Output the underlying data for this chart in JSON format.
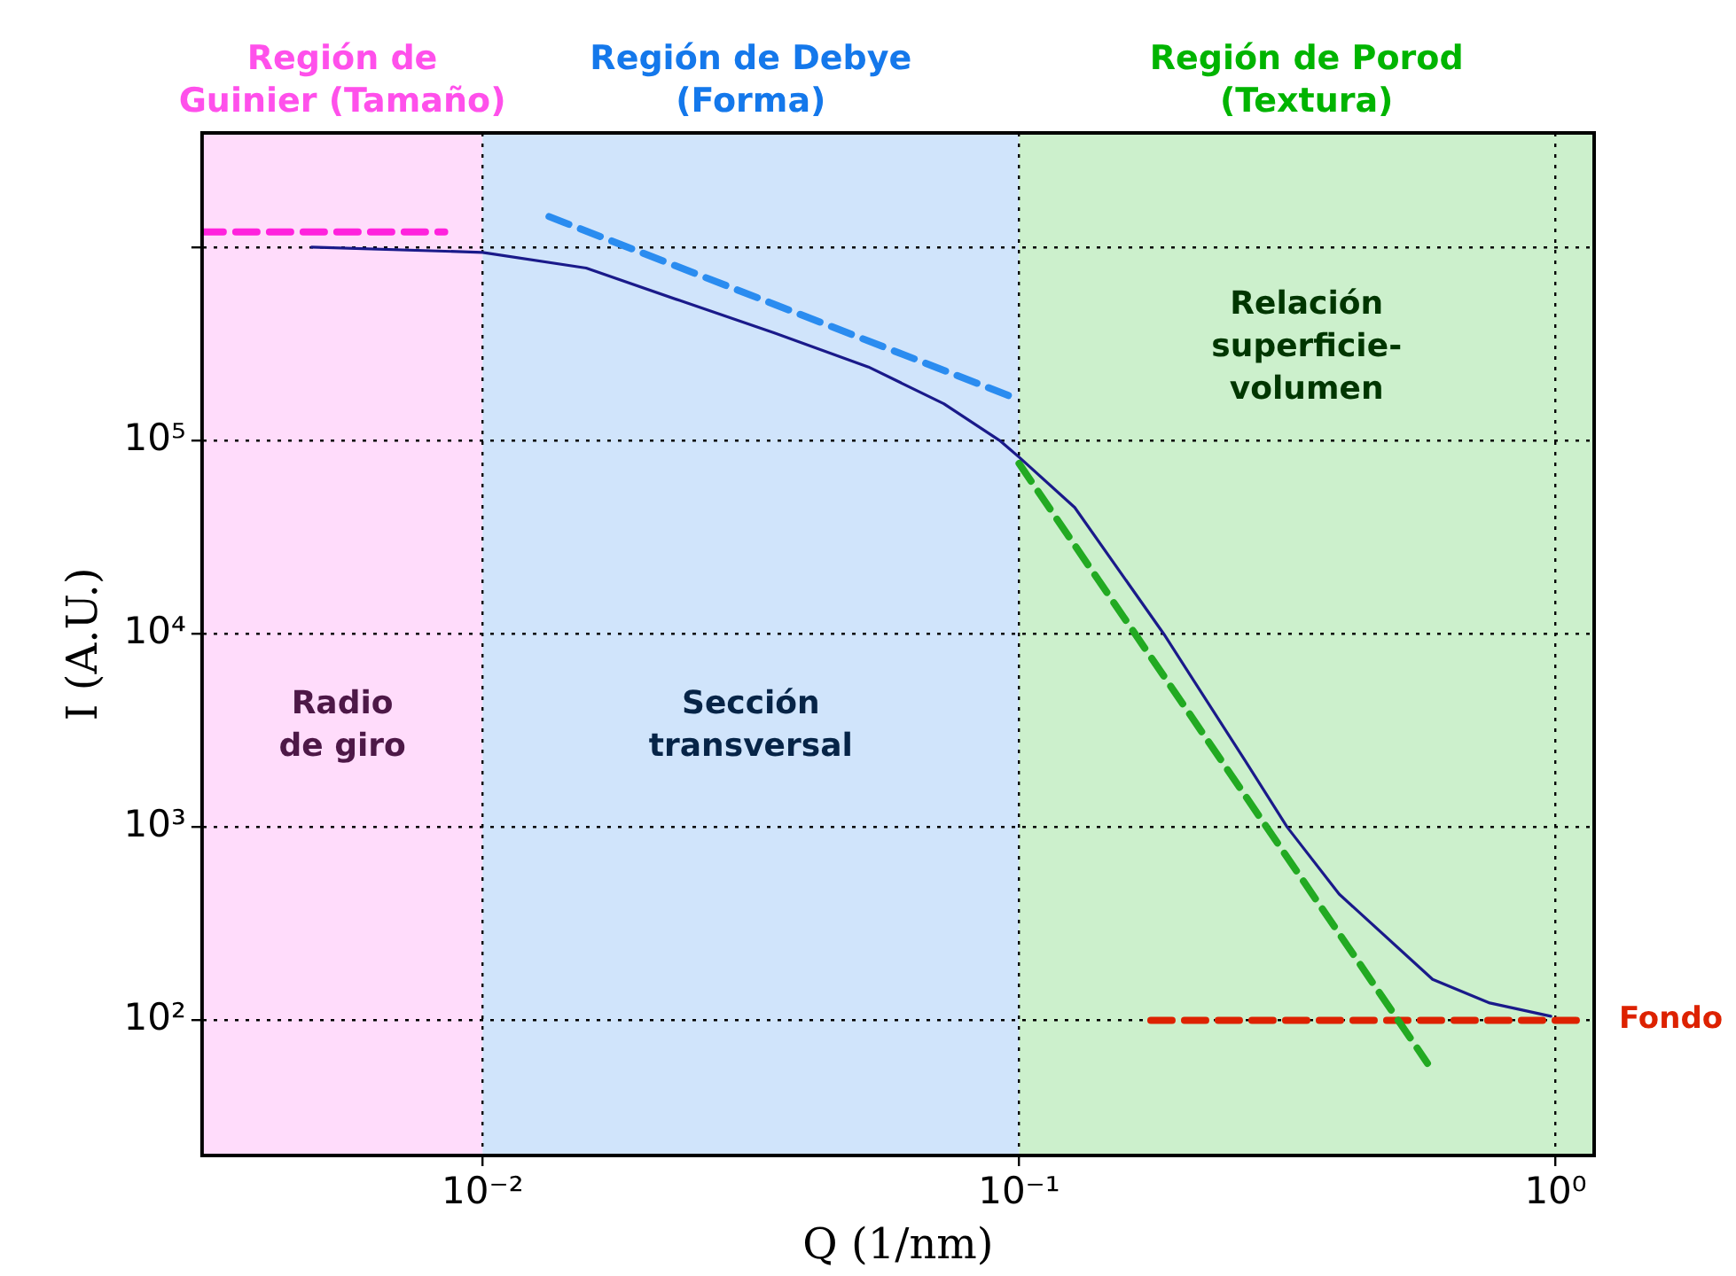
{
  "chart_data": {
    "type": "line",
    "xlabel": "Q (1/nm)",
    "ylabel": "I (A.U.)",
    "log": "xy",
    "grid": true,
    "legend": false,
    "marker": "none",
    "xlim": [
      0.003,
      1.18
    ],
    "ylim": [
      20,
      3900000
    ],
    "xticks": [
      {
        "value": 0.01,
        "label": "10⁻²"
      },
      {
        "value": 0.1,
        "label": "10⁻¹"
      },
      {
        "value": 1,
        "label": "10⁰"
      }
    ],
    "yticks": [
      {
        "value": 100,
        "label": "10²"
      },
      {
        "value": 1000,
        "label": "10³"
      },
      {
        "value": 10000,
        "label": "10⁴"
      },
      {
        "value": 100000,
        "label": "10⁵"
      },
      {
        "value": 1000000,
        "label": null
      }
    ],
    "bands": [
      {
        "axis": "x",
        "from": 0.003,
        "to": 0.01,
        "label": "Región de Guinier (Tamaño)",
        "color": "#ffdcfb"
      },
      {
        "axis": "x",
        "from": 0.01,
        "to": 0.1,
        "label": "Región de Debye (Forma)",
        "color": "#d0e4fb"
      },
      {
        "axis": "x",
        "from": 0.1,
        "to": 1.18,
        "label": "Región de Porod (Textura)",
        "color": "#ccf0cc"
      }
    ],
    "annotations": [
      "Radio de giro",
      "Sección transversal",
      "Relación superficie-volumen"
    ],
    "series": [
      {
        "color": "#1a1a8a",
        "line_style": "solid",
        "x": [
          0.0048,
          0.01,
          0.0156,
          0.0233,
          0.035,
          0.0524,
          0.0724,
          0.092,
          0.1,
          0.127,
          0.186,
          0.264,
          0.316,
          0.395,
          0.59,
          0.754,
          0.98
        ],
        "values": [
          1000000,
          940000,
          780000,
          530000,
          360000,
          240000,
          155000,
          100000,
          82000,
          45000,
          10000,
          2200,
          1000,
          450,
          163,
          123,
          105
        ]
      },
      {
        "color": "#ff22dd",
        "line_style": "dashed",
        "x": [
          0.003,
          0.0085
        ],
        "values": [
          1200000,
          1200000
        ]
      },
      {
        "color": "#2a8cf0",
        "line_style": "dashed",
        "x": [
          0.0133,
          0.096
        ],
        "values": [
          1440000,
          170000
        ]
      },
      {
        "color": "#22aa22",
        "line_style": "dashed",
        "x": [
          0.1,
          0.577
        ],
        "values": [
          76000,
          60
        ]
      },
      {
        "name": "Fondo",
        "color": "#dd2200",
        "line_style": "dashed",
        "x": [
          0.176,
          1.15
        ],
        "values": [
          100,
          100
        ]
      }
    ]
  }
}
